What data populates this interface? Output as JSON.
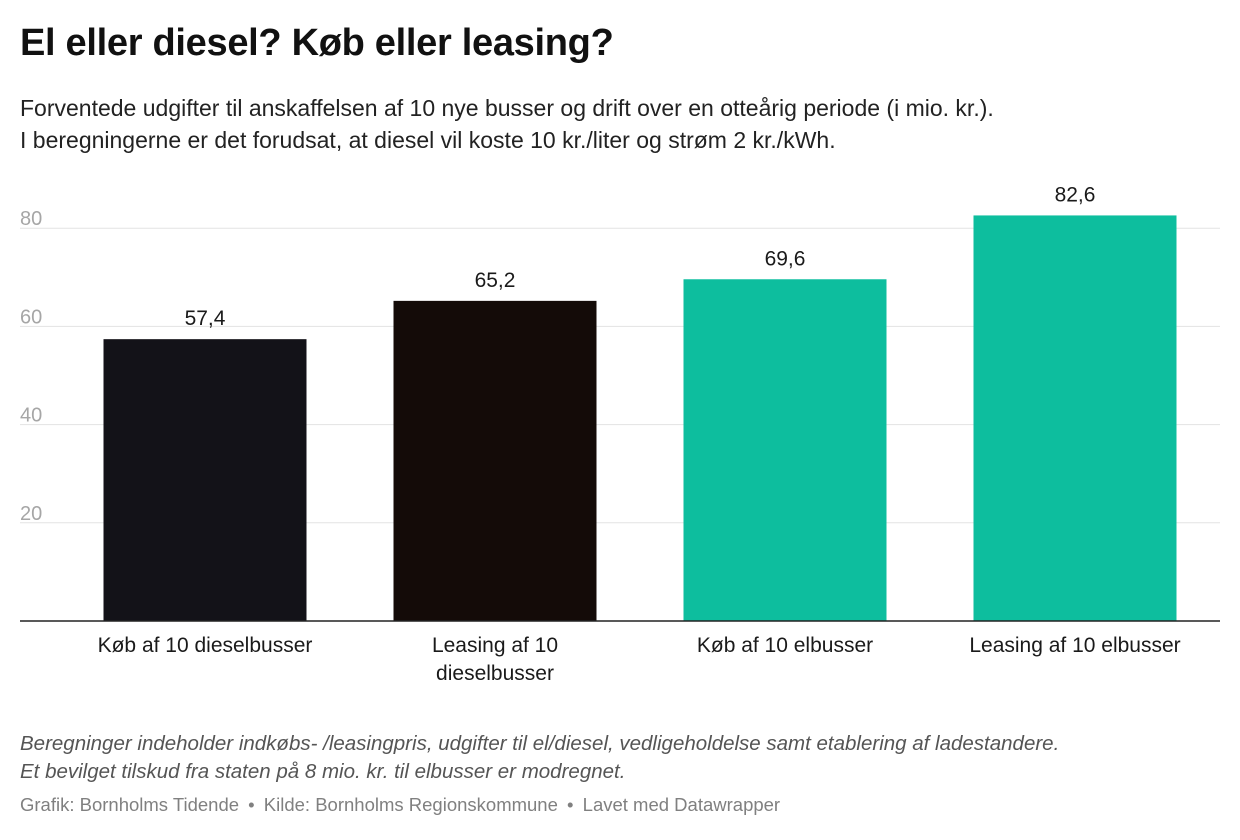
{
  "title": "El eller diesel? Køb eller leasing?",
  "subtitle": [
    "Forventede udgifter til anskaffelsen af 10 nye busser og drift over en otteårig periode (i mio. kr.).",
    "I beregningerne er det forudsat, at diesel vil koste 10 kr./liter og strøm 2 kr./kWh."
  ],
  "chart_data": {
    "type": "bar",
    "categories": [
      [
        "Køb af 10 dieselbusser"
      ],
      [
        "Leasing af 10",
        "dieselbusser"
      ],
      [
        "Køb af 10 elbusser"
      ],
      [
        "Leasing af 10 elbusser"
      ]
    ],
    "values": [
      57.4,
      65.2,
      69.6,
      82.6
    ],
    "value_labels": [
      "57,4",
      "65,2",
      "69,6",
      "82,6"
    ],
    "colors": [
      "#131218",
      "#140b08",
      "#0dbe9e",
      "#0dbe9e"
    ],
    "yticks": [
      20,
      40,
      60,
      80
    ],
    "ylim": [
      0,
      86
    ],
    "grid": true,
    "legend": "none"
  },
  "notes": [
    "Beregninger indeholder indkøbs- /leasingpris, udgifter til el/diesel, vedligeholdelse samt etablering af ladestandere.",
    "Et bevilget tilskud fra staten på 8 mio. kr. til elbusser er modregnet."
  ],
  "byline": {
    "graphic": "Grafik: Bornholms Tidende",
    "source": "Kilde: Bornholms Regionskommune",
    "made_with": "Lavet med Datawrapper",
    "separator": "•"
  }
}
